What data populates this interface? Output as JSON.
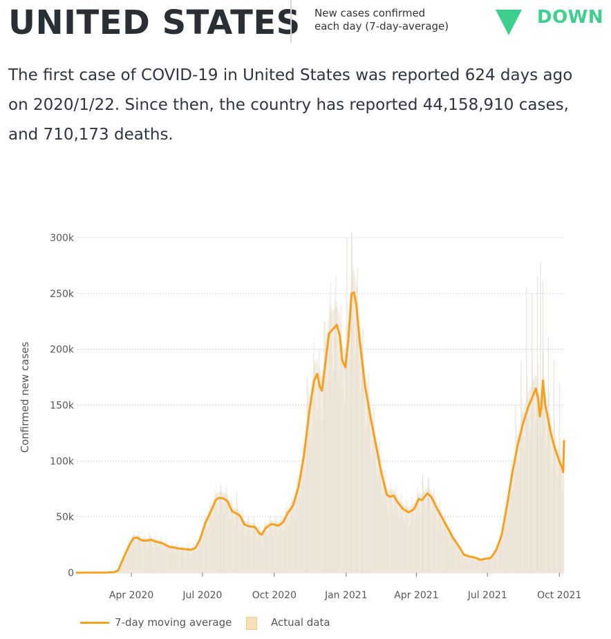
{
  "header": {
    "country": "UNITED STATES",
    "metric_line1": "New cases confirmed",
    "metric_line2": "each day (7-day-average)",
    "trend": "DOWN",
    "trend_color": "#3ccf8e"
  },
  "summary": {
    "line1": "The first case of COVID-19 in United States was reported 624 days ago",
    "line2": "on 2020/1/22. Since then, the country has reported 44,158,910 cases,",
    "line3": "and 710,173 deaths."
  },
  "legend": {
    "average_label": "7-day moving average",
    "actual_label": "Actual data"
  },
  "colors": {
    "average_line": "#f5a11e",
    "actual_fill": "#f4ede2",
    "actual_bar": "#e6ddcf",
    "grid": "#d4d4d4"
  },
  "chart_data": {
    "type": "line",
    "ylabel": "Confirmed new cases",
    "xlabel": "",
    "ylim": [
      0,
      300000
    ],
    "y_ticks": [
      0,
      50000,
      100000,
      150000,
      200000,
      250000,
      300000
    ],
    "y_tick_labels": [
      "0",
      "50k",
      "100k",
      "150k",
      "200k",
      "250k",
      "300k"
    ],
    "x_ticks": [
      "2020-04-01",
      "2020-07-01",
      "2020-10-01",
      "2021-01-01",
      "2021-04-01",
      "2021-07-01",
      "2021-10-01"
    ],
    "x_tick_labels": [
      "Apr 2020",
      "Jul 2020",
      "Oct 2020",
      "Jan 2021",
      "Apr 2021",
      "Jul 2021",
      "Oct 2021"
    ],
    "x_range": [
      "2020-01-22",
      "2021-10-07"
    ],
    "grid": true,
    "legend_position": "bottom-left",
    "series": [
      {
        "name": "7-day moving average",
        "kind": "line",
        "points": [
          [
            "2020-01-22",
            0
          ],
          [
            "2020-03-01",
            100
          ],
          [
            "2020-03-10",
            500
          ],
          [
            "2020-03-15",
            2000
          ],
          [
            "2020-03-20",
            10000
          ],
          [
            "2020-03-25",
            18000
          ],
          [
            "2020-03-31",
            27000
          ],
          [
            "2020-04-04",
            31000
          ],
          [
            "2020-04-08",
            31500
          ],
          [
            "2020-04-14",
            29000
          ],
          [
            "2020-04-20",
            28500
          ],
          [
            "2020-04-26",
            29500
          ],
          [
            "2020-05-01",
            28000
          ],
          [
            "2020-05-10",
            26500
          ],
          [
            "2020-05-20",
            23000
          ],
          [
            "2020-05-26",
            22500
          ],
          [
            "2020-06-01",
            21500
          ],
          [
            "2020-06-10",
            21000
          ],
          [
            "2020-06-16",
            20500
          ],
          [
            "2020-06-22",
            22000
          ],
          [
            "2020-06-28",
            30000
          ],
          [
            "2020-07-05",
            45000
          ],
          [
            "2020-07-12",
            55000
          ],
          [
            "2020-07-18",
            65000
          ],
          [
            "2020-07-22",
            67000
          ],
          [
            "2020-07-28",
            66500
          ],
          [
            "2020-08-02",
            64000
          ],
          [
            "2020-08-08",
            55000
          ],
          [
            "2020-08-12",
            53500
          ],
          [
            "2020-08-18",
            51000
          ],
          [
            "2020-08-24",
            43000
          ],
          [
            "2020-08-30",
            41500
          ],
          [
            "2020-09-06",
            41000
          ],
          [
            "2020-09-12",
            35000
          ],
          [
            "2020-09-15",
            34000
          ],
          [
            "2020-09-20",
            40000
          ],
          [
            "2020-09-27",
            43500
          ],
          [
            "2020-10-02",
            43000
          ],
          [
            "2020-10-06",
            42000
          ],
          [
            "2020-10-12",
            45000
          ],
          [
            "2020-10-18",
            53000
          ],
          [
            "2020-10-25",
            60000
          ],
          [
            "2020-11-01",
            77000
          ],
          [
            "2020-11-08",
            105000
          ],
          [
            "2020-11-15",
            145000
          ],
          [
            "2020-11-21",
            172000
          ],
          [
            "2020-11-25",
            178000
          ],
          [
            "2020-11-28",
            167000
          ],
          [
            "2020-12-01",
            163000
          ],
          [
            "2020-12-05",
            185000
          ],
          [
            "2020-12-10",
            214000
          ],
          [
            "2020-12-15",
            218000
          ],
          [
            "2020-12-20",
            222000
          ],
          [
            "2020-12-24",
            212000
          ],
          [
            "2020-12-27",
            190000
          ],
          [
            "2020-12-31",
            184000
          ],
          [
            "2021-01-04",
            210000
          ],
          [
            "2021-01-08",
            250000
          ],
          [
            "2021-01-11",
            251000
          ],
          [
            "2021-01-14",
            240000
          ],
          [
            "2021-01-18",
            210000
          ],
          [
            "2021-01-25",
            168000
          ],
          [
            "2021-02-01",
            140000
          ],
          [
            "2021-02-08",
            115000
          ],
          [
            "2021-02-15",
            90000
          ],
          [
            "2021-02-22",
            70000
          ],
          [
            "2021-02-26",
            68000
          ],
          [
            "2021-03-03",
            69000
          ],
          [
            "2021-03-08",
            63000
          ],
          [
            "2021-03-15",
            57000
          ],
          [
            "2021-03-22",
            54000
          ],
          [
            "2021-03-29",
            57000
          ],
          [
            "2021-04-04",
            66000
          ],
          [
            "2021-04-08",
            65000
          ],
          [
            "2021-04-15",
            71000
          ],
          [
            "2021-04-20",
            68000
          ],
          [
            "2021-04-27",
            58000
          ],
          [
            "2021-05-04",
            49000
          ],
          [
            "2021-05-11",
            40000
          ],
          [
            "2021-05-18",
            31000
          ],
          [
            "2021-05-25",
            24000
          ],
          [
            "2021-06-01",
            16000
          ],
          [
            "2021-06-08",
            14500
          ],
          [
            "2021-06-15",
            13500
          ],
          [
            "2021-06-22",
            11500
          ],
          [
            "2021-06-29",
            12500
          ],
          [
            "2021-07-05",
            13000
          ],
          [
            "2021-07-12",
            20000
          ],
          [
            "2021-07-19",
            33000
          ],
          [
            "2021-07-26",
            60000
          ],
          [
            "2021-08-02",
            90000
          ],
          [
            "2021-08-09",
            115000
          ],
          [
            "2021-08-16",
            135000
          ],
          [
            "2021-08-23",
            150000
          ],
          [
            "2021-08-28",
            158000
          ],
          [
            "2021-09-01",
            165000
          ],
          [
            "2021-09-04",
            155000
          ],
          [
            "2021-09-06",
            140000
          ],
          [
            "2021-09-08",
            148000
          ],
          [
            "2021-09-10",
            172000
          ],
          [
            "2021-09-13",
            150000
          ],
          [
            "2021-09-16",
            140000
          ],
          [
            "2021-09-20",
            125000
          ],
          [
            "2021-09-25",
            112000
          ],
          [
            "2021-10-01",
            100000
          ],
          [
            "2021-10-04",
            95000
          ],
          [
            "2021-10-06",
            90000
          ],
          [
            "2021-10-07",
            118000
          ]
        ]
      },
      {
        "name": "Actual data",
        "kind": "area",
        "note_values": "daily counts fluctuate around the 7-day average, with spikes up to about 300000 in early January 2021 and about 278000 in September 2021",
        "spikes": [
          [
            "2020-04-24",
            36000
          ],
          [
            "2020-07-24",
            77000
          ],
          [
            "2020-08-14",
            73000
          ],
          [
            "2020-11-12",
            175000
          ],
          [
            "2020-12-04",
            225000
          ],
          [
            "2020-12-11",
            240000
          ],
          [
            "2020-12-18",
            245000
          ],
          [
            "2021-01-02",
            300000
          ],
          [
            "2021-01-08",
            305000
          ],
          [
            "2021-01-15",
            255000
          ],
          [
            "2021-01-22",
            200000
          ],
          [
            "2021-04-09",
            88000
          ],
          [
            "2021-04-16",
            85000
          ],
          [
            "2021-08-06",
            150000
          ],
          [
            "2021-08-13",
            190000
          ],
          [
            "2021-08-20",
            255000
          ],
          [
            "2021-08-27",
            250000
          ],
          [
            "2021-09-03",
            265000
          ],
          [
            "2021-09-07",
            278000
          ],
          [
            "2021-09-10",
            262000
          ],
          [
            "2021-09-17",
            210000
          ],
          [
            "2021-09-24",
            190000
          ],
          [
            "2021-10-01",
            170000
          ]
        ]
      }
    ]
  }
}
